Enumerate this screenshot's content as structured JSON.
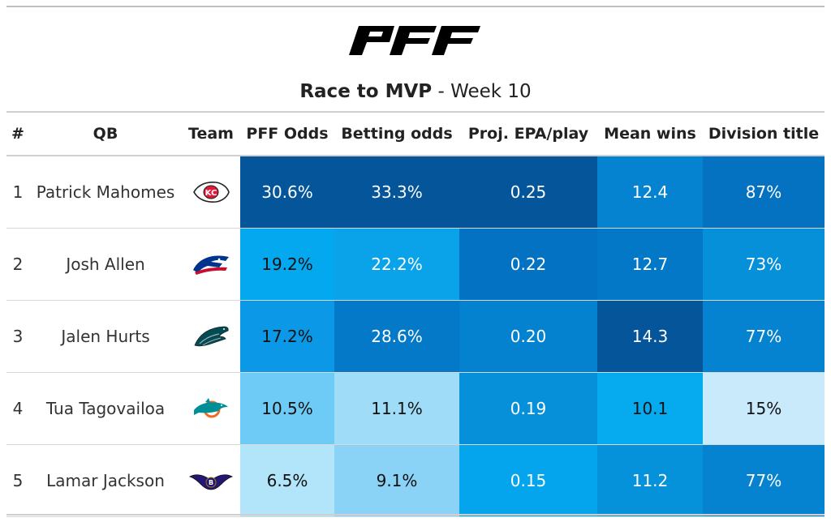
{
  "header": {
    "logo_text": "PFF",
    "title_bold": "Race to MVP",
    "title_rest": " - Week 10"
  },
  "columns": [
    "#",
    "QB",
    "Team",
    "PFF Odds",
    "Betting odds",
    "Proj. EPA/play",
    "Mean wins",
    "Division title"
  ],
  "rows": [
    {
      "rank": "1",
      "qb": "Patrick Mahomes",
      "team_icon": "chiefs-logo-icon",
      "pff_odds": "30.6%",
      "betting_odds": "33.3%",
      "epa": "0.25",
      "mean_wins": "12.4",
      "division": "87%"
    },
    {
      "rank": "2",
      "qb": "Josh Allen",
      "team_icon": "bills-logo-icon",
      "pff_odds": "19.2%",
      "betting_odds": "22.2%",
      "epa": "0.22",
      "mean_wins": "12.7",
      "division": "73%"
    },
    {
      "rank": "3",
      "qb": "Jalen Hurts",
      "team_icon": "eagles-logo-icon",
      "pff_odds": "17.2%",
      "betting_odds": "28.6%",
      "epa": "0.20",
      "mean_wins": "14.3",
      "division": "77%"
    },
    {
      "rank": "4",
      "qb": "Tua Tagovailoa",
      "team_icon": "dolphins-logo-icon",
      "pff_odds": "10.5%",
      "betting_odds": "11.1%",
      "epa": "0.19",
      "mean_wins": "10.1",
      "division": "15%"
    },
    {
      "rank": "5",
      "qb": "Lamar Jackson",
      "team_icon": "ravens-logo-icon",
      "pff_odds": "6.5%",
      "betting_odds": "9.1%",
      "epa": "0.15",
      "mean_wins": "11.2",
      "division": "77%"
    }
  ],
  "cell_colors": {
    "pff_odds": [
      "#04559a",
      "#04a8ee",
      "#0b98e6",
      "#6dcbf6",
      "#b2e4fa"
    ],
    "betting_odds": [
      "#04559a",
      "#0aa3e9",
      "#0479c8",
      "#9fdcf8",
      "#8bd3f6"
    ],
    "epa": [
      "#04559a",
      "#0372c2",
      "#0582cf",
      "#0590d9",
      "#04a5ec"
    ],
    "mean_wins": [
      "#0583d1",
      "#0378c7",
      "#04559a",
      "#05aaef",
      "#0592da"
    ],
    "division": [
      "#0571c1",
      "#0590d9",
      "#0583d1",
      "#c8eafb",
      "#0583d1"
    ]
  },
  "dark_text": {
    "pff_odds": [
      false,
      true,
      true,
      true,
      true
    ],
    "betting_odds": [
      false,
      false,
      false,
      true,
      true
    ],
    "epa": [
      false,
      false,
      false,
      false,
      false
    ],
    "mean_wins": [
      false,
      false,
      false,
      true,
      false
    ],
    "division": [
      false,
      false,
      false,
      true,
      false
    ]
  }
}
